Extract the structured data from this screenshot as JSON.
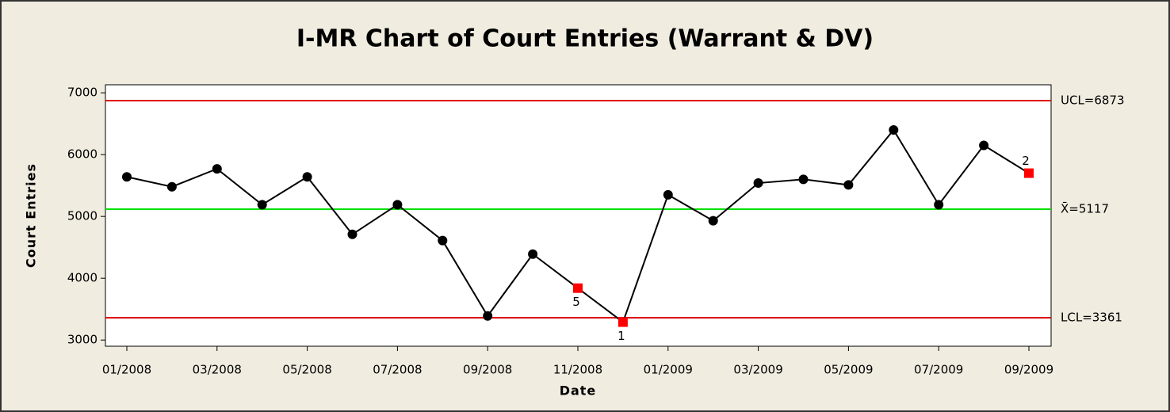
{
  "chart_data": {
    "type": "line",
    "title": "I-MR Chart of Court Entries (Warrant & DV)",
    "x_label": "Date",
    "y_label": "Court Entries",
    "categories": [
      "01/2008",
      null,
      "03/2008",
      null,
      "05/2008",
      null,
      "07/2008",
      null,
      "09/2008",
      null,
      "11/2008",
      null,
      "01/2009",
      null,
      "03/2009",
      null,
      "05/2009",
      null,
      "07/2009",
      null,
      "09/2009"
    ],
    "series": [
      {
        "name": "Court Entries",
        "color": "#000000",
        "values": [
          5640,
          5480,
          5770,
          5190,
          5640,
          4710,
          5190,
          4610,
          3390,
          4390,
          3840,
          3290,
          5350,
          4930,
          5540,
          5600,
          5510,
          6400,
          5190,
          6150,
          5700
        ],
        "point_labels": [
          null,
          null,
          null,
          null,
          null,
          null,
          null,
          null,
          null,
          null,
          "5",
          "1",
          null,
          null,
          null,
          null,
          null,
          null,
          null,
          null,
          "2"
        ]
      }
    ],
    "flag_color": "#ff0000",
    "control_lines": [
      {
        "label": "UCL=6873",
        "value": 6873,
        "color": "#e00000"
      },
      {
        "label": "X̄=5117",
        "value": 5117,
        "color": "#00e000"
      },
      {
        "label": "LCL=3361",
        "value": 3361,
        "color": "#e00000"
      }
    ],
    "ylim": [
      2900,
      7130
    ],
    "yticks": [
      3000,
      4000,
      5000,
      6000,
      7000
    ]
  }
}
